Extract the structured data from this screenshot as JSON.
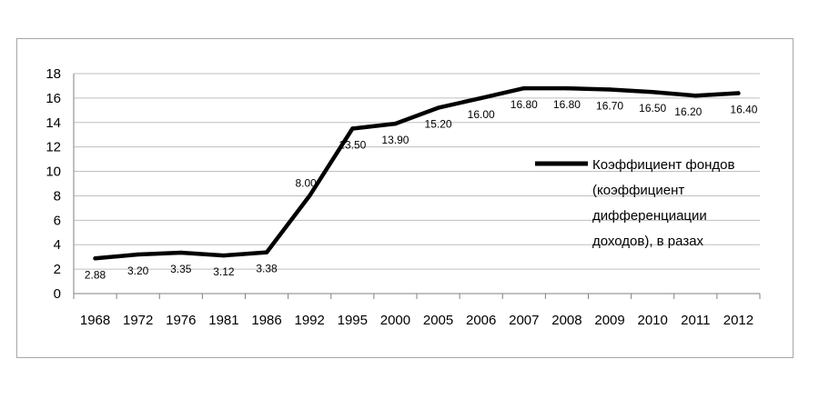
{
  "chart_data": {
    "type": "line",
    "categories": [
      "1968",
      "1972",
      "1976",
      "1981",
      "1986",
      "1992",
      "1995",
      "2000",
      "2005",
      "2006",
      "2007",
      "2008",
      "2009",
      "2010",
      "2011",
      "2012"
    ],
    "series": [
      {
        "name": "Коэффициент фондов (коэффициент дифференциации доходов), в разах",
        "values": [
          2.88,
          3.2,
          3.35,
          3.12,
          3.38,
          8.0,
          13.5,
          13.9,
          15.2,
          16.0,
          16.8,
          16.8,
          16.7,
          16.5,
          16.2,
          16.4
        ],
        "labels": [
          "2.88",
          "3.20",
          "3.35",
          "3.12",
          "3.38",
          "8.00",
          "13.50",
          "13.90",
          "15.20",
          "16.00",
          "16.80",
          "16.80",
          "16.70",
          "16.50",
          "16.20",
          "16.40"
        ]
      }
    ],
    "legend_lines": [
      "Коэффициент фондов",
      "(коэффициент",
      "дифференциации",
      "доходов), в разах"
    ],
    "ylim": [
      0,
      18
    ],
    "yticks": [
      0,
      2,
      4,
      6,
      8,
      10,
      12,
      14,
      16,
      18
    ],
    "grid": true,
    "legend_position": "right",
    "colors": {
      "line": "#000000",
      "grid": "#bfbfbf",
      "axis": "#808080"
    }
  }
}
